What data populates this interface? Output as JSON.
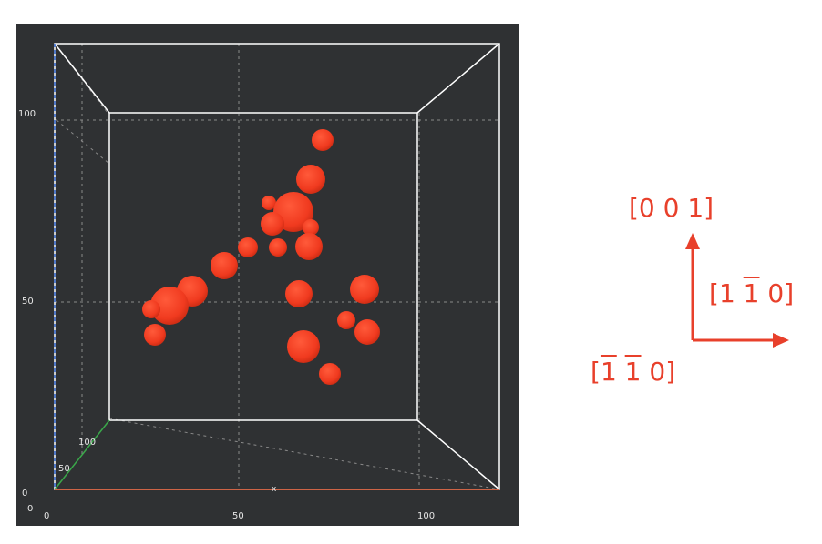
{
  "viewer": {
    "background_color": "#2f3133",
    "frame_color": "#ffffff",
    "particle_color": "#f03a1f",
    "grid_color": "#8a8a8a",
    "z_ticks": [
      "100",
      "50",
      "0"
    ],
    "x_ticks": [
      "0",
      "50",
      "100"
    ],
    "y_ticks": [
      "100",
      "50"
    ],
    "corner_label": "0",
    "x_axis_marker": "x",
    "particles": [
      {
        "x": 0.62,
        "y": 0.58,
        "size": 0.7
      },
      {
        "x": 0.56,
        "y": 0.4,
        "size": 1.3
      },
      {
        "x": 0.52,
        "y": 0.48,
        "size": 0.9
      },
      {
        "x": 0.48,
        "y": 0.55,
        "size": 1.0
      },
      {
        "x": 0.44,
        "y": 0.5,
        "size": 0.7
      }
    ]
  },
  "orientation": {
    "up_label": "[0 0 1]",
    "right": {
      "digit1": "1",
      "digit2": "1",
      "digit3": "0"
    },
    "front": {
      "digit1": "1",
      "digit2": "1",
      "digit3": "0"
    },
    "arrow_color": "#e8402b"
  }
}
